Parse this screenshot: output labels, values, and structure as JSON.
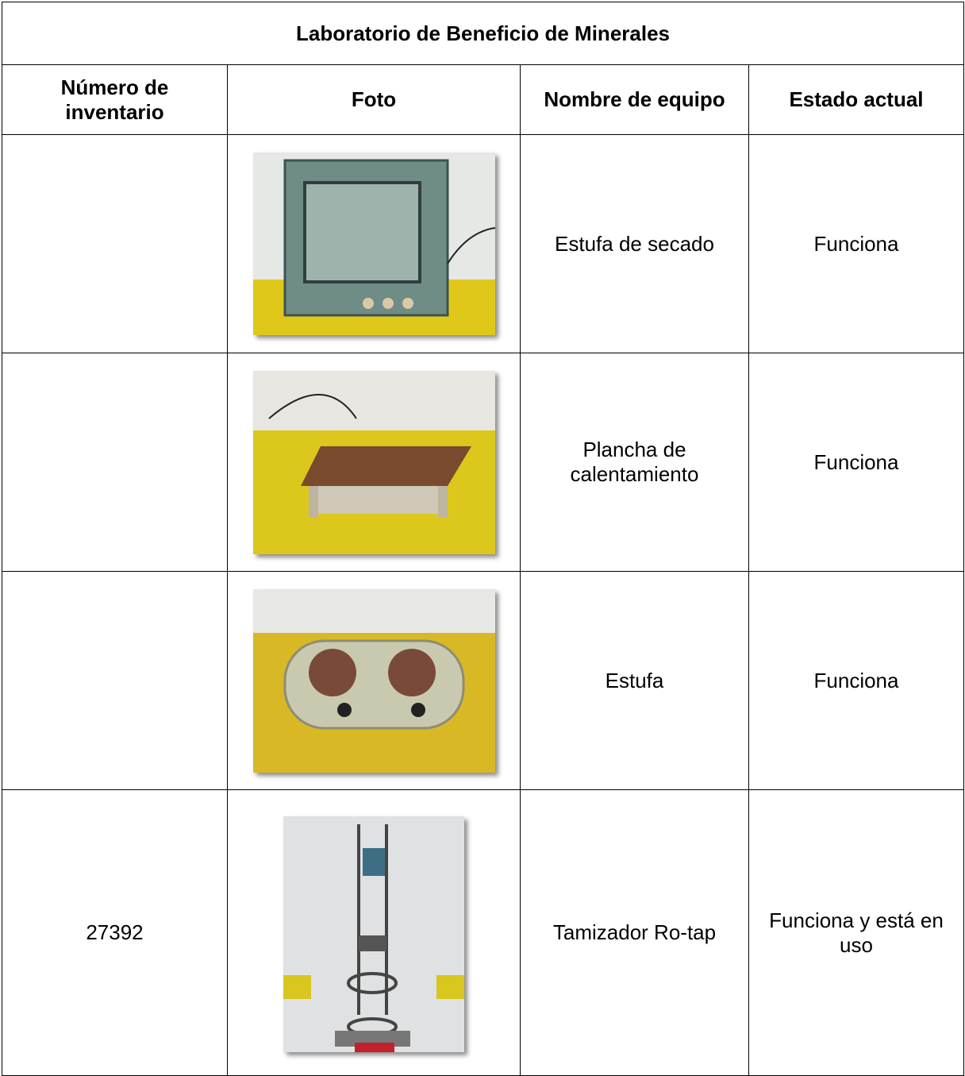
{
  "table": {
    "title": "Laboratorio de Beneficio de Minerales",
    "headers": [
      "Número de inventario",
      "Foto",
      "Nombre de equipo",
      "Estado actual"
    ],
    "rows": [
      {
        "inventory": null,
        "name": "Estufa de secado",
        "status": "Funciona"
      },
      {
        "inventory": null,
        "name": "Plancha de calentamiento",
        "status": "Funciona"
      },
      {
        "inventory": null,
        "name": "Estufa",
        "status": "Funciona"
      },
      {
        "inventory": "27392",
        "name": "Tamizador Ro-tap",
        "status": "Funciona  y está en uso"
      }
    ]
  }
}
